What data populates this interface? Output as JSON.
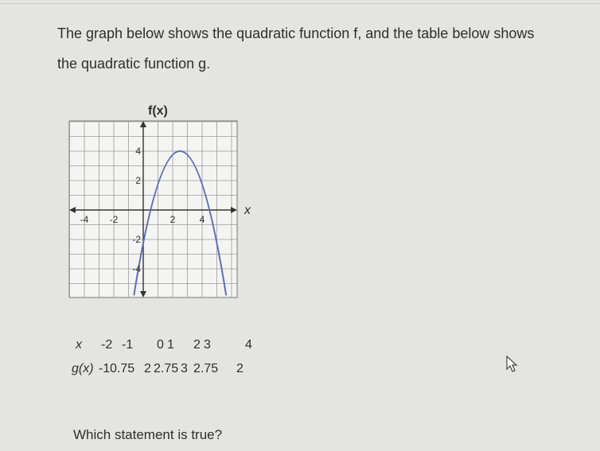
{
  "question": {
    "intro_line_1": "The graph below shows the quadratic function f, and the table below shows",
    "intro_line_2": "the quadratic function g."
  },
  "graph": {
    "y_axis_label": "f(x)",
    "x_axis_label": "x",
    "x_tick_labels": [
      "-4",
      "-2",
      "2",
      "4"
    ],
    "y_tick_labels": [
      "4",
      "2",
      "-2",
      "-4"
    ]
  },
  "table": {
    "rows": [
      [
        "x",
        -2,
        -1,
        0,
        1,
        2,
        3,
        4
      ],
      [
        "g(x)",
        -1,
        0.75,
        2,
        2.75,
        3,
        2.75,
        2
      ]
    ]
  },
  "prompt": "Which statement is true?"
}
